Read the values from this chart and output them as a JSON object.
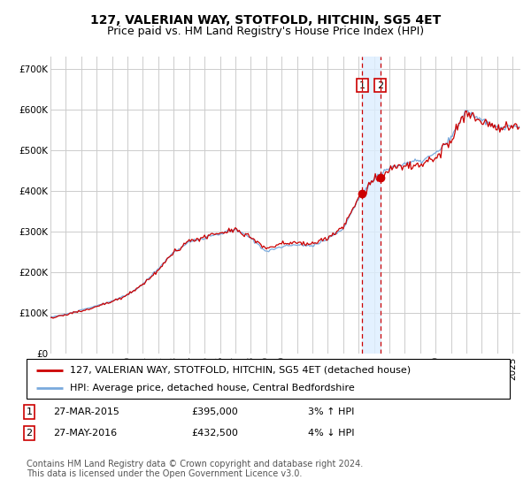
{
  "title": "127, VALERIAN WAY, STOTFOLD, HITCHIN, SG5 4ET",
  "subtitle": "Price paid vs. HM Land Registry's House Price Index (HPI)",
  "ylabel_ticks": [
    "£0",
    "£100K",
    "£200K",
    "£300K",
    "£400K",
    "£500K",
    "£600K",
    "£700K"
  ],
  "ytick_values": [
    0,
    100000,
    200000,
    300000,
    400000,
    500000,
    600000,
    700000
  ],
  "ylim": [
    0,
    730000
  ],
  "xlim_start": 1995.0,
  "xlim_end": 2025.5,
  "sale1_x": 2015.24,
  "sale1_y": 395000,
  "sale1_label": "1",
  "sale2_x": 2016.41,
  "sale2_y": 432500,
  "sale2_label": "2",
  "red_line_color": "#cc0000",
  "blue_line_color": "#7aaadd",
  "shade_color": "#ddeeff",
  "dashed_line_color": "#cc0000",
  "grid_color": "#cccccc",
  "background_color": "#ffffff",
  "legend_line1": "127, VALERIAN WAY, STOTFOLD, HITCHIN, SG5 4ET (detached house)",
  "legend_line2": "HPI: Average price, detached house, Central Bedfordshire",
  "table_row1": [
    "1",
    "27-MAR-2015",
    "£395,000",
    "3% ↑ HPI"
  ],
  "table_row2": [
    "2",
    "27-MAY-2016",
    "£432,500",
    "4% ↓ HPI"
  ],
  "footnote": "Contains HM Land Registry data © Crown copyright and database right 2024.\nThis data is licensed under the Open Government Licence v3.0.",
  "title_fontsize": 10,
  "subtitle_fontsize": 9,
  "tick_fontsize": 7.5,
  "legend_fontsize": 8,
  "table_fontsize": 8,
  "footnote_fontsize": 7
}
